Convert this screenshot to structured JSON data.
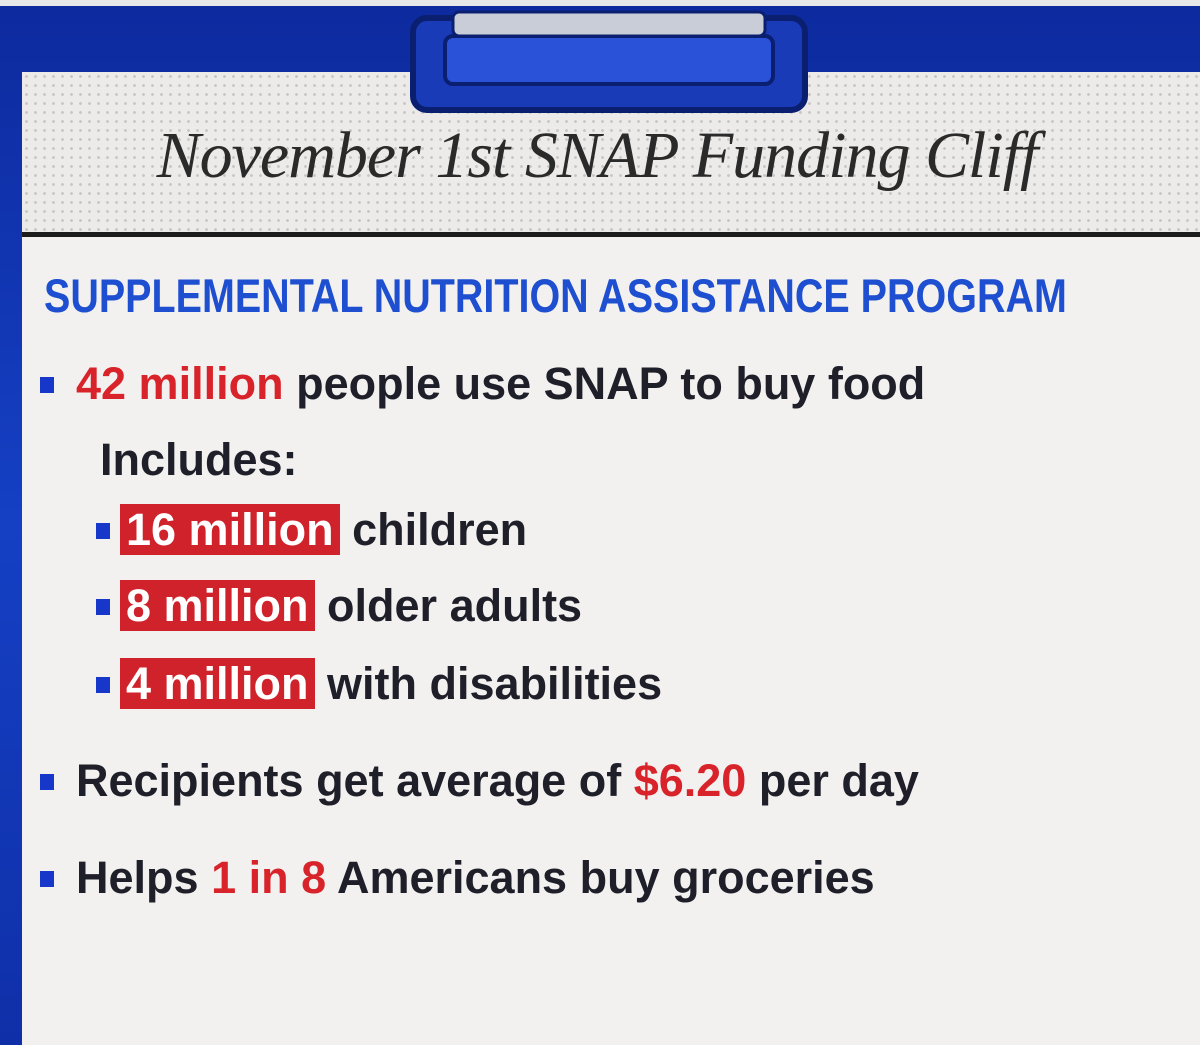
{
  "title": "November 1st SNAP Funding Cliff",
  "subtitle": "SUPPLEMENTAL NUTRITION ASSISTANCE PROGRAM",
  "items": [
    {
      "highlight": "42 million",
      "text": "people use SNAP to buy food"
    },
    {
      "before": "Recipients get average of",
      "highlight": "$6.20",
      "after": "per day"
    },
    {
      "before": "Helps",
      "highlight": "1 in 8",
      "after": "Americans buy groceries"
    }
  ],
  "includes": {
    "label": "Includes:",
    "items": [
      {
        "highlight": "16 million",
        "text": "children"
      },
      {
        "highlight": "8 million",
        "text": "older adults"
      },
      {
        "highlight": "4 million",
        "text": "with disabilities"
      }
    ]
  }
}
